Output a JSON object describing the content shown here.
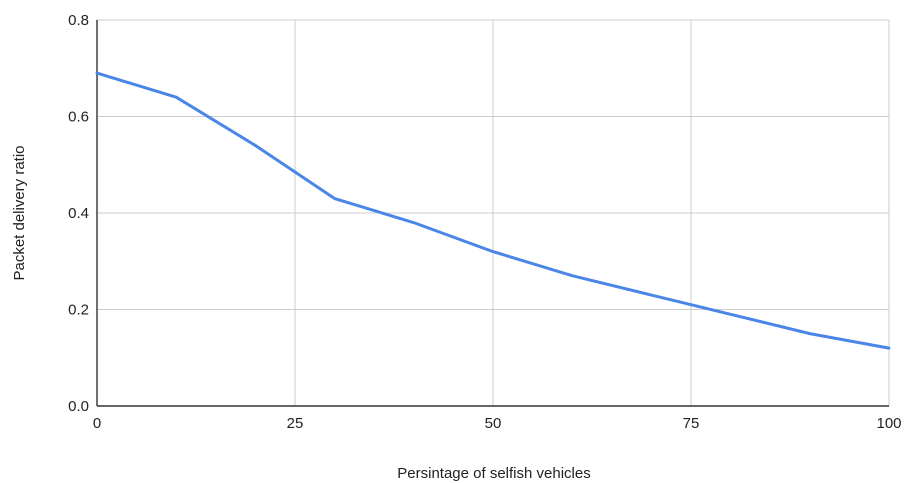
{
  "chart_data": {
    "type": "line",
    "title": "",
    "xlabel": "Persintage of selfish vehicles",
    "ylabel": "Packet delivery ratio",
    "xlim": [
      0,
      100
    ],
    "ylim": [
      0,
      0.8
    ],
    "x_ticks": [
      "0",
      "25",
      "50",
      "75",
      "100"
    ],
    "y_ticks": [
      "0.0",
      "0.2",
      "0.4",
      "0.6",
      "0.8"
    ],
    "grid": true,
    "legend": "none",
    "series": [
      {
        "color": "#4a86e8",
        "x": [
          0,
          10,
          20,
          30,
          40,
          50,
          60,
          70,
          80,
          90,
          100
        ],
        "y": [
          0.69,
          0.64,
          0.54,
          0.43,
          0.38,
          0.32,
          0.27,
          0.23,
          0.19,
          0.15,
          0.12
        ]
      }
    ]
  }
}
